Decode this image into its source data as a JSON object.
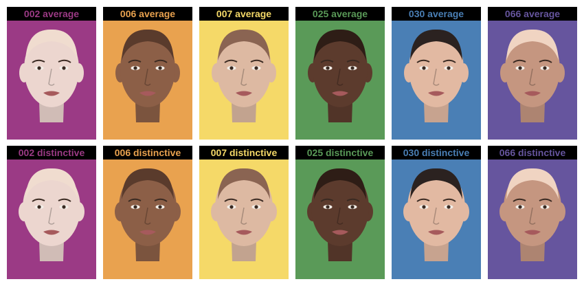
{
  "panels": [
    {
      "label": "002 average",
      "color": "#9b3a85",
      "skin": "#ecd6cf",
      "hair": "#f0dccf",
      "row": "top",
      "col": 0
    },
    {
      "label": "006 average",
      "color": "#e9a24f",
      "skin": "#8c5f47",
      "hair": "#5a3b2c",
      "row": "top",
      "col": 1
    },
    {
      "label": "007 average",
      "color": "#f5d968",
      "skin": "#ddb9a2",
      "hair": "#8a6452",
      "row": "top",
      "col": 2
    },
    {
      "label": "025 average",
      "color": "#5a9a58",
      "skin": "#5c3b2d",
      "hair": "#2e1d16",
      "row": "top",
      "col": 3
    },
    {
      "label": "030 average",
      "color": "#4a7fb5",
      "skin": "#e2b9a2",
      "hair": "#2b2220",
      "row": "top",
      "col": 4
    },
    {
      "label": "066 average",
      "color": "#66559e",
      "skin": "#c59680",
      "hair": "#f0d4c2",
      "row": "top",
      "col": 5
    },
    {
      "label": "002 distinctive",
      "color": "#9b3a85",
      "skin": "#ecd6cf",
      "hair": "#f0dccf",
      "row": "bottom",
      "col": 0
    },
    {
      "label": "006 distinctive",
      "color": "#e9a24f",
      "skin": "#8c5f47",
      "hair": "#5a3b2c",
      "row": "bottom",
      "col": 1
    },
    {
      "label": "007 distinctive",
      "color": "#f5d968",
      "skin": "#ddb9a2",
      "hair": "#8a6452",
      "row": "bottom",
      "col": 2
    },
    {
      "label": "025 distinctive",
      "color": "#5a9a58",
      "skin": "#5c3b2d",
      "hair": "#2e1d16",
      "row": "bottom",
      "col": 3
    },
    {
      "label": "030 distinctive",
      "color": "#4a7fb5",
      "skin": "#e2b9a2",
      "hair": "#2b2220",
      "row": "bottom",
      "col": 4
    },
    {
      "label": "066 distinctive",
      "color": "#66559e",
      "skin": "#c59680",
      "hair": "#f0d4c2",
      "row": "bottom",
      "col": 5
    }
  ]
}
